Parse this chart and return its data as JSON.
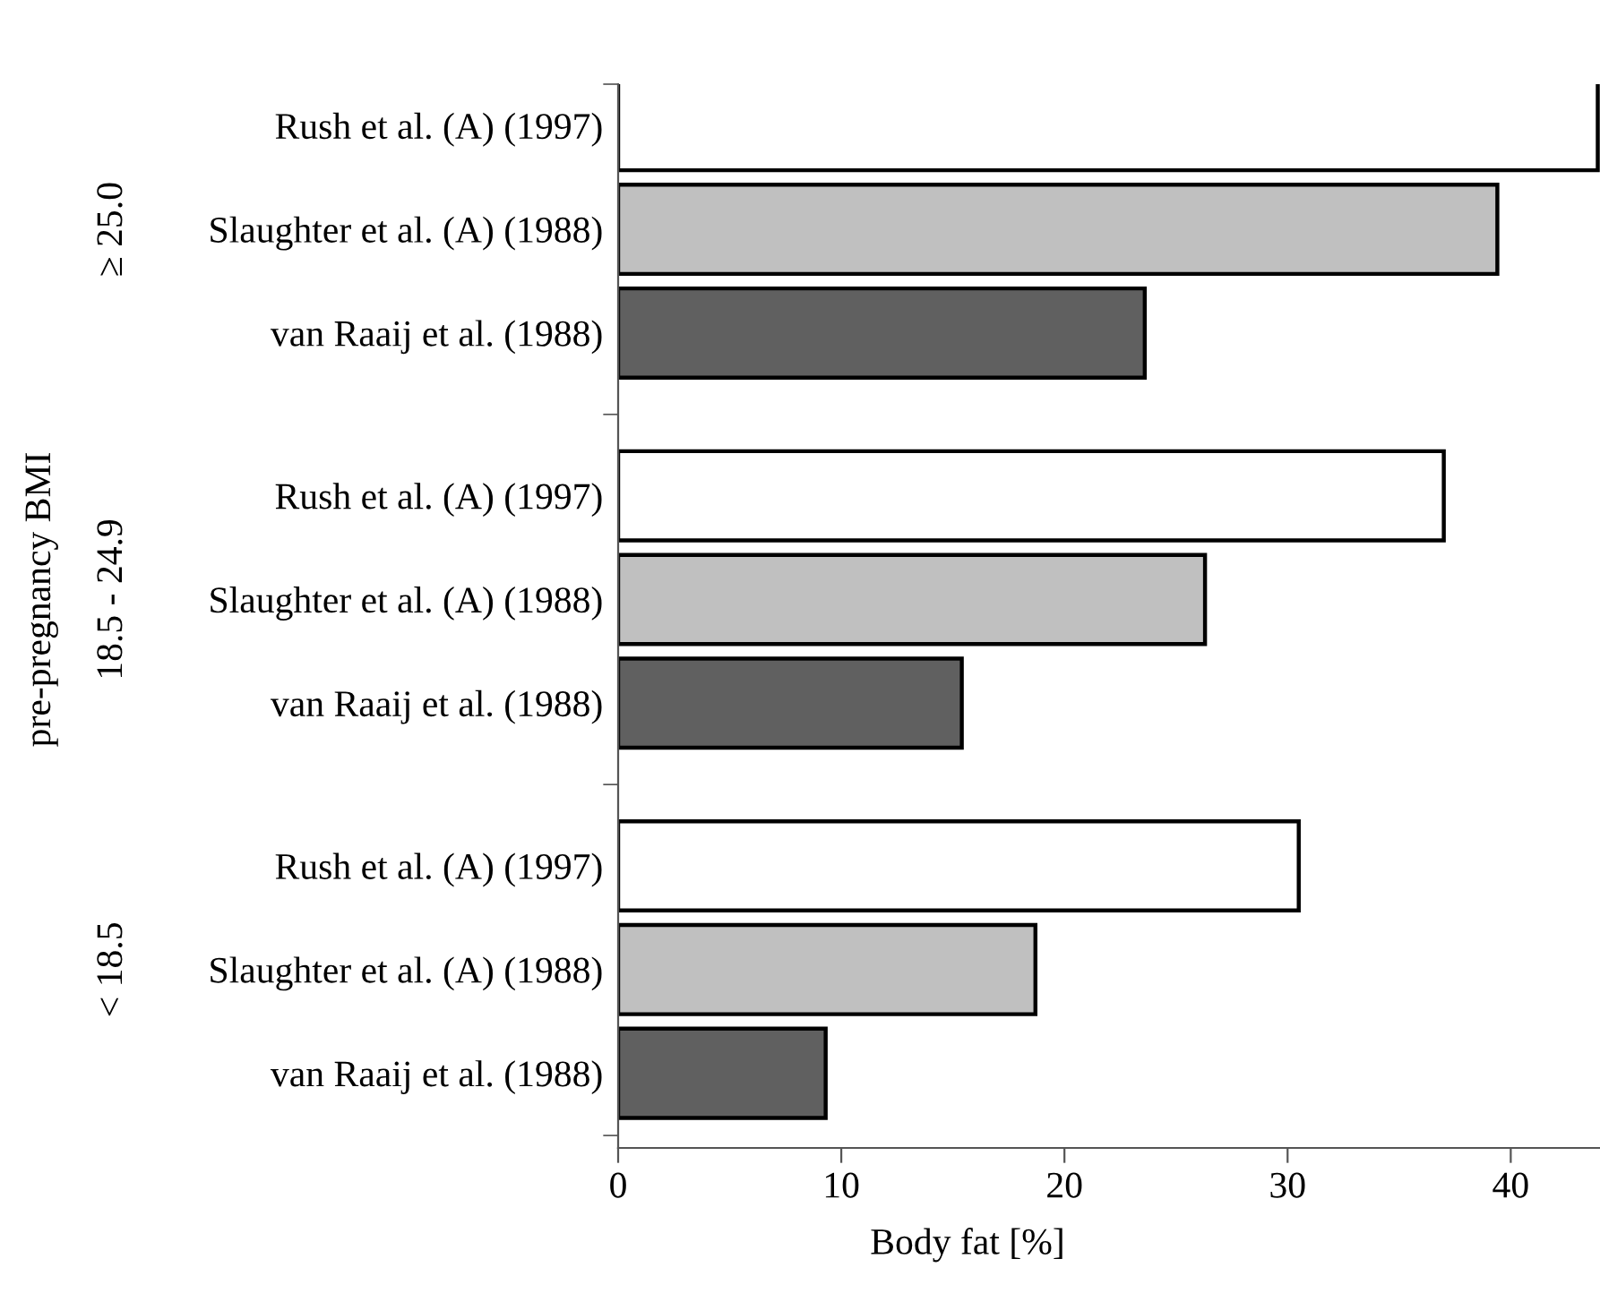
{
  "chart_data": {
    "type": "bar",
    "orientation": "horizontal",
    "categories": [
      "Rush et al. (A) (1997)",
      "Slaughter et al. (A) (1988)",
      "van Raaij et al. (1988)",
      "Rush et al. (A) (1997)",
      "Slaughter et al. (A) (1988)",
      "van Raaij et al. (1988)",
      "Rush et al. (A) (1997)",
      "Slaughter et al. (A) (1988)",
      "van Raaij et al. (1988)"
    ],
    "values": [
      43.9,
      39.4,
      23.6,
      37.0,
      26.3,
      15.4,
      30.5,
      18.7,
      9.3
    ],
    "colors": [
      "#ffffff",
      "#c0c0c0",
      "#606060",
      "#ffffff",
      "#c0c0c0",
      "#606060",
      "#ffffff",
      "#c0c0c0",
      "#606060"
    ],
    "xlabel": "Body fat [%]",
    "ylabel": "pre-pregnancy BMI",
    "annotations": [
      "≥ 25.0",
      "18.5 - 24.9",
      "< 18.5"
    ],
    "xlim": [
      0,
      44
    ],
    "xticks": [
      0,
      10,
      20,
      30,
      40
    ],
    "grid": false
  }
}
